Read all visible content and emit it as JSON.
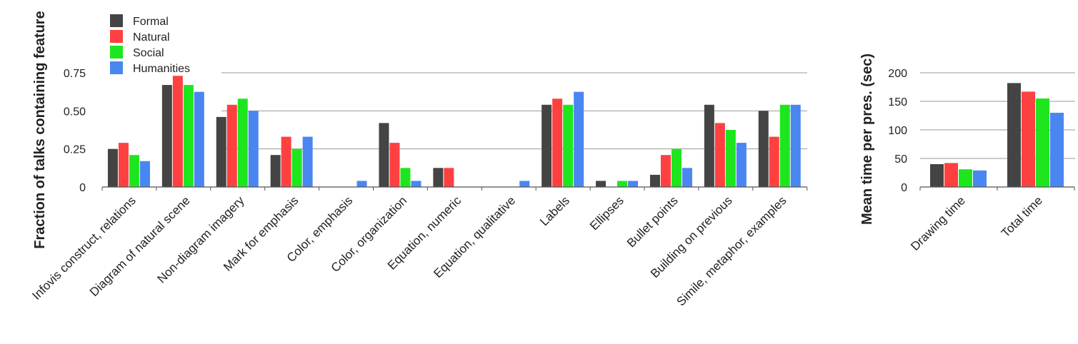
{
  "colors": {
    "Formal": "#444444",
    "Natural": "#ff4040",
    "Social": "#1ee61e",
    "Humanities": "#4a86f0",
    "gridline": "#9a9a9a",
    "axis": "#555555"
  },
  "legend": [
    "Formal",
    "Natural",
    "Social",
    "Humanities"
  ],
  "chart_data": [
    {
      "type": "bar",
      "ylabel": "Fraction of talks containing feature",
      "yticks": [
        "0",
        "0.25",
        "0.50",
        "0.75"
      ],
      "ylim": [
        0,
        0.75
      ],
      "grid": true,
      "legend_position": "top-left",
      "categories": [
        "Infovis construct, relations",
        "Diagram of natural scene",
        "Non-diagram imagery",
        "Mark for emphasis",
        "Color, emphasis",
        "Color, organization",
        "Equation, numeric",
        "Equation, qualitative",
        "Labels",
        "Ellipses",
        "Bullet points",
        "Building on previous",
        "Simile, metaphor, examples"
      ],
      "series": [
        {
          "name": "Formal",
          "values": [
            0.25,
            0.67,
            0.46,
            0.21,
            0,
            0.42,
            0.125,
            0,
            0.54,
            0.04,
            0.08,
            0.54,
            0.5
          ]
        },
        {
          "name": "Natural",
          "values": [
            0.29,
            0.73,
            0.54,
            0.33,
            0,
            0.29,
            0.125,
            0,
            0.58,
            0,
            0.21,
            0.42,
            0.33
          ]
        },
        {
          "name": "Social",
          "values": [
            0.21,
            0.67,
            0.58,
            0.25,
            0,
            0.125,
            0,
            0,
            0.54,
            0.04,
            0.25,
            0.375,
            0.54
          ]
        },
        {
          "name": "Humanities",
          "values": [
            0.17,
            0.625,
            0.5,
            0.33,
            0.04,
            0.04,
            0,
            0.04,
            0.625,
            0.04,
            0.125,
            0.29,
            0.54
          ]
        }
      ]
    },
    {
      "type": "bar",
      "ylabel": "Mean time per pres. (sec)",
      "yticks": [
        "0",
        "50",
        "100",
        "150",
        "200"
      ],
      "ylim": [
        0,
        200
      ],
      "grid": true,
      "categories": [
        "Drawing time",
        "Total time"
      ],
      "series": [
        {
          "name": "Formal",
          "values": [
            40,
            182
          ]
        },
        {
          "name": "Natural",
          "values": [
            42,
            167
          ]
        },
        {
          "name": "Social",
          "values": [
            31,
            155
          ]
        },
        {
          "name": "Humanities",
          "values": [
            29,
            130
          ]
        }
      ]
    }
  ]
}
